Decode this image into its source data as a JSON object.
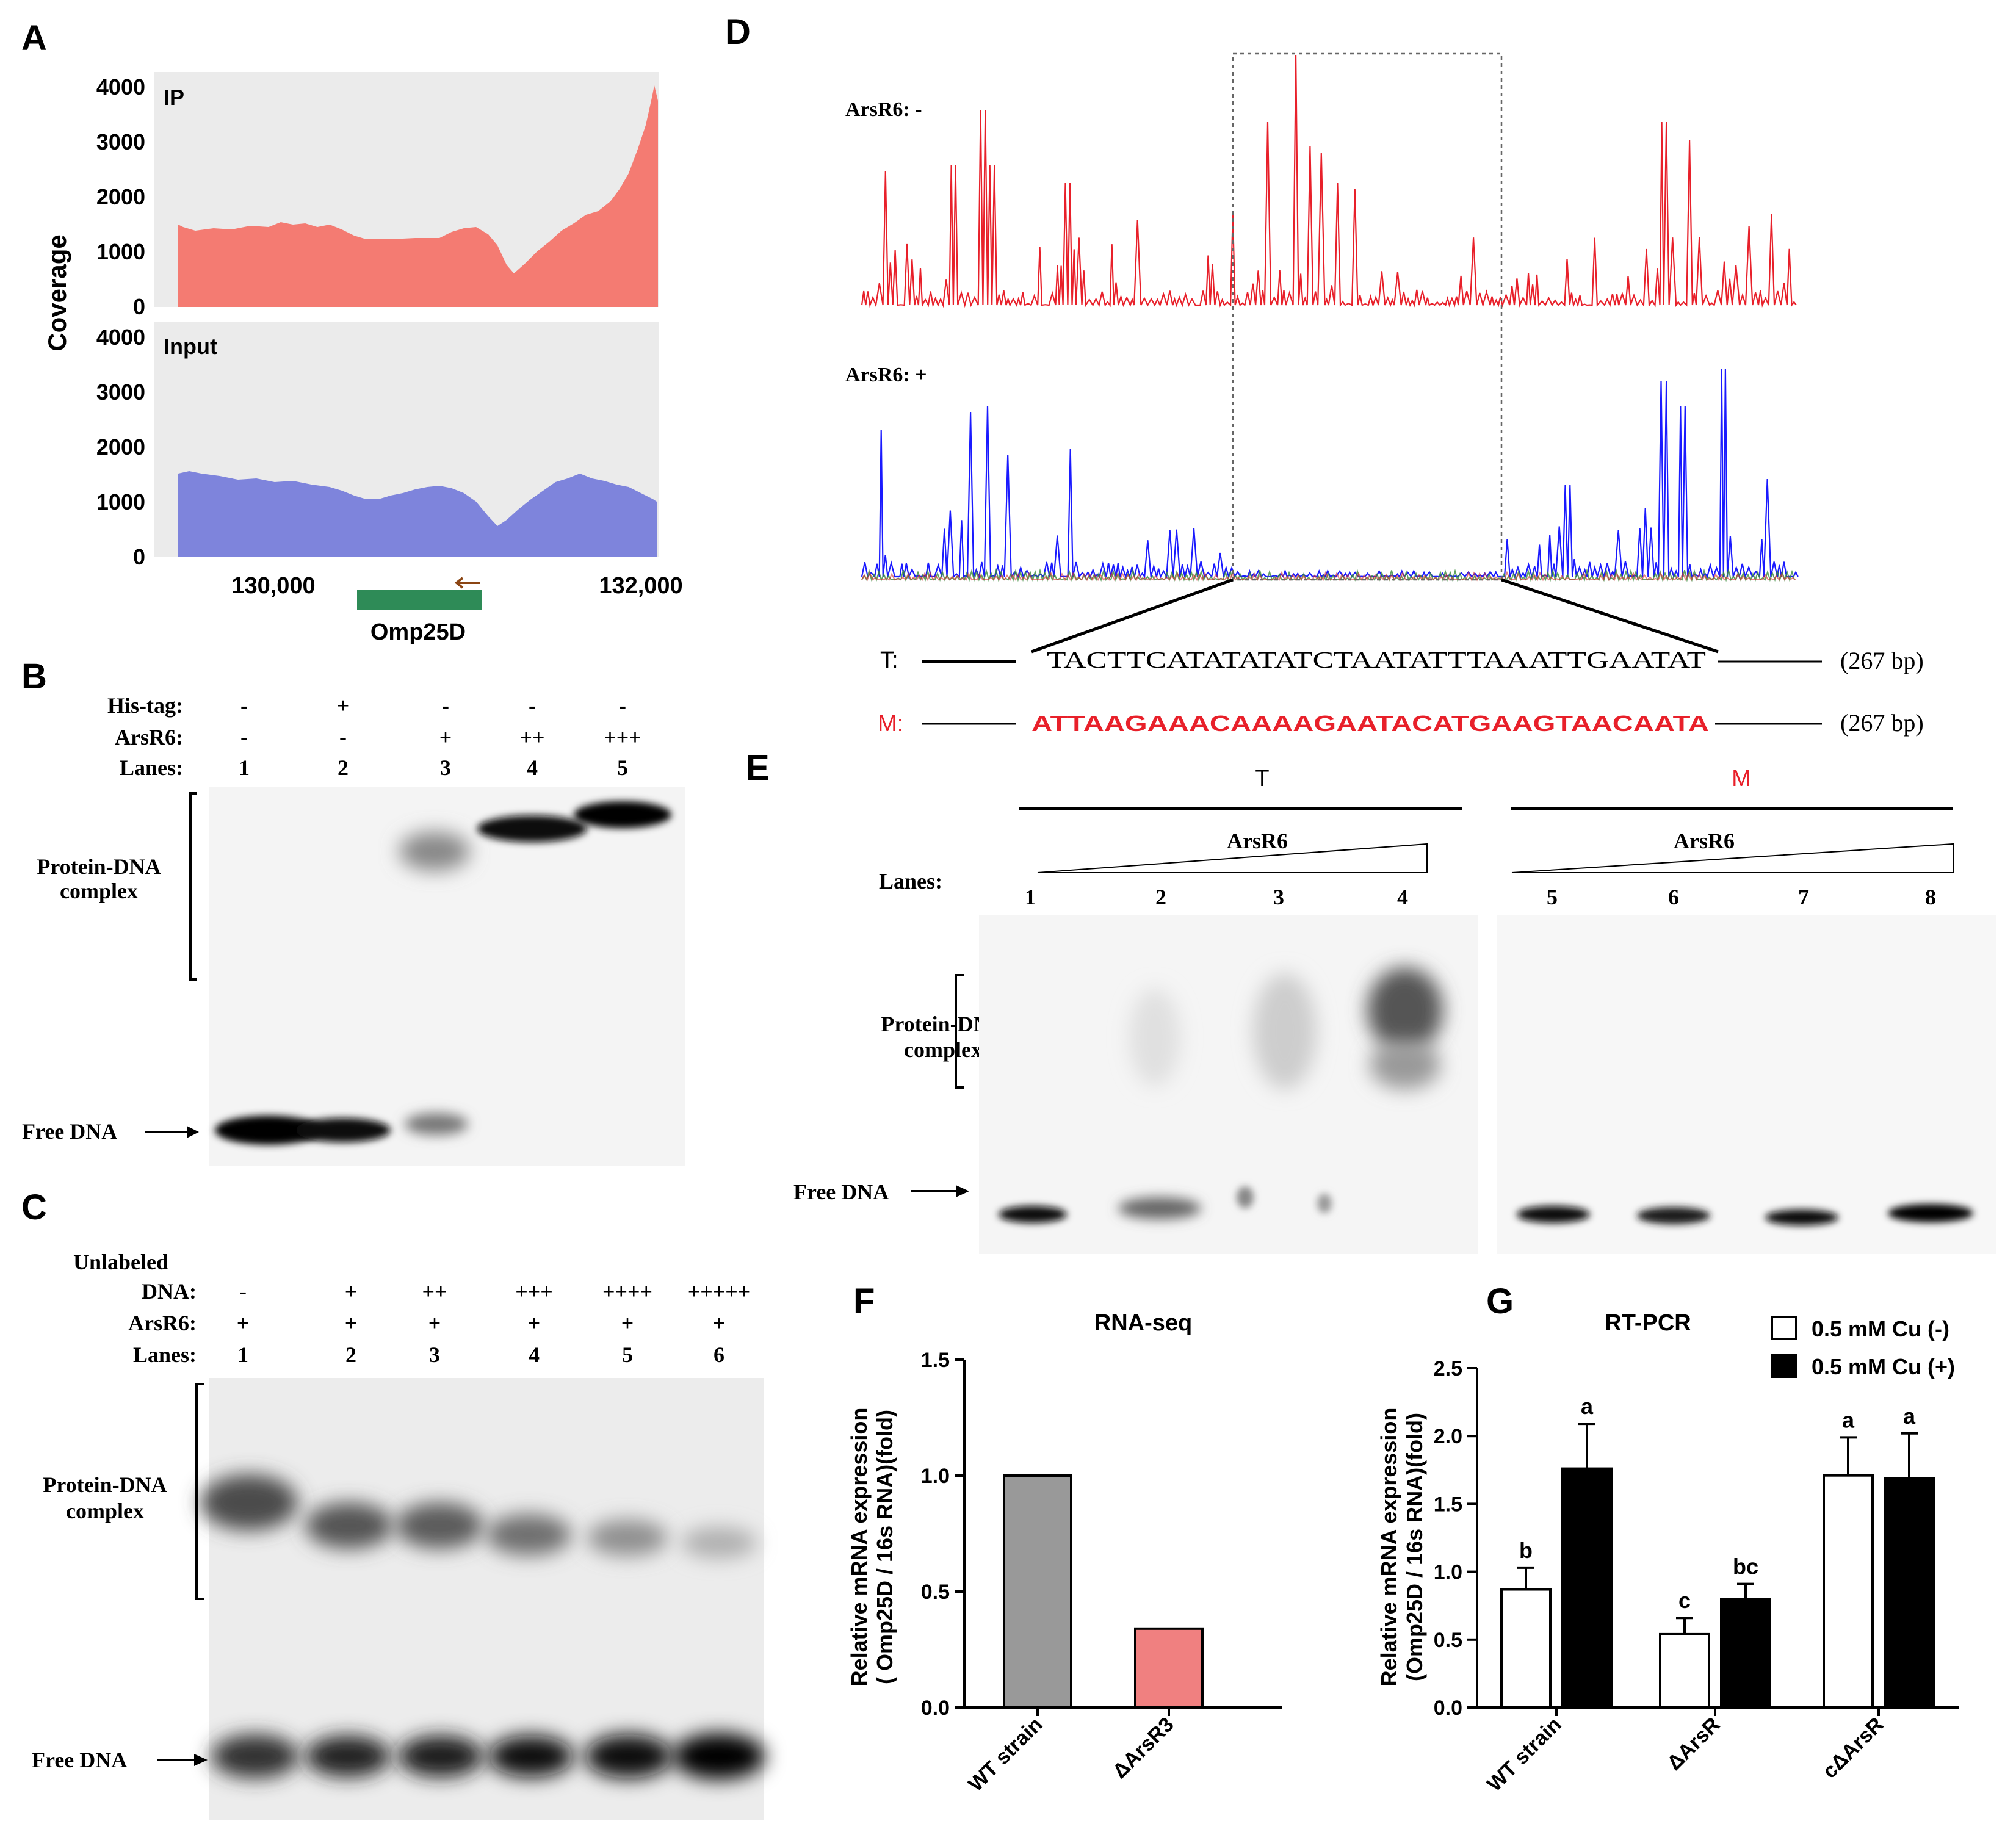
{
  "panel_letters": {
    "a": "A",
    "b": "B",
    "c": "C",
    "d": "D",
    "e": "E",
    "f": "F",
    "g": "G"
  },
  "panel_a": {
    "ylabel": "Coverage",
    "tracks": [
      "IP",
      "Input"
    ],
    "yticks": [
      "4000",
      "3000",
      "2000",
      "1000",
      "0"
    ],
    "xticks": [
      "130,000",
      "132,000"
    ],
    "gene": "Omp25D",
    "ip_color": "#f47b72",
    "input_color": "#7e84dc",
    "gene_color": "#2e8b57"
  },
  "panel_b": {
    "rows": [
      {
        "label": "His-tag:",
        "values": [
          "-",
          "+",
          "-",
          "-",
          "-"
        ]
      },
      {
        "label": "ArsR6:",
        "values": [
          "-",
          "-",
          "+",
          "++",
          "+++"
        ]
      },
      {
        "label": "Lanes:",
        "values": [
          "1",
          "2",
          "3",
          "4",
          "5"
        ]
      }
    ],
    "complex_label": [
      "Protein-DNA",
      "complex"
    ],
    "free_label": "Free DNA"
  },
  "panel_c": {
    "unlabeled_line1": "Unlabeled",
    "rows": [
      {
        "label": "DNA:",
        "values": [
          "-",
          "+",
          "++",
          "+++",
          "++++",
          "+++++"
        ]
      },
      {
        "label": "ArsR6:",
        "values": [
          "+",
          "+",
          "+",
          "+",
          "+",
          "+"
        ]
      },
      {
        "label": "Lanes:",
        "values": [
          "1",
          "2",
          "3",
          "4",
          "5",
          "6"
        ]
      }
    ],
    "complex_label": [
      "Protein-DNA",
      "complex"
    ],
    "free_label": "Free DNA"
  },
  "panel_d": {
    "trace1_label": "ArsR6: -",
    "trace2_label": "ArsR6: +",
    "trace1_color": "#e8202a",
    "trace2_color": "#1a1aff",
    "t_label": "T:",
    "t_seq": "TACTTCATATATATCTAATATTTAAATTGAATAT",
    "m_label": "M:",
    "m_seq": "ATTAAGAAACAAAAGAATACATGAAGTAACAATA",
    "length_t": "(267 bp)",
    "length_m": "(267 bp)",
    "m_color": "#e8202a"
  },
  "panel_e": {
    "t_header": "T",
    "m_header": "M",
    "arsr_label": "ArsR6",
    "lanes_label": "Lanes:",
    "lanes": [
      "1",
      "2",
      "3",
      "4",
      "5",
      "6",
      "7",
      "8"
    ],
    "complex_label": [
      "Protein-DNA",
      "complex"
    ],
    "free_label": "Free DNA"
  },
  "chart_data": [
    {
      "type": "bar",
      "title": "RNA-seq",
      "ylabel": "Relative mRNA expression ( Omp25D / 16s RNA)(fold)",
      "ylabel_lines": [
        "Relative mRNA expression",
        "( Omp25D / 16s RNA)(fold)"
      ],
      "categories": [
        "WT strain",
        "ΔArsR3"
      ],
      "values": [
        1.0,
        0.34
      ],
      "colors": [
        "#999999",
        "#f08080"
      ],
      "ylim": [
        0,
        1.5
      ],
      "yticks": [
        "0.0",
        "0.5",
        "1.0",
        "1.5"
      ]
    },
    {
      "type": "bar",
      "title": "RT-PCR",
      "ylabel": "Relative mRNA expression (Omp25D / 16s RNA)(fold)",
      "ylabel_lines": [
        "Relative mRNA expression",
        "(Omp25D / 16s RNA)(fold)"
      ],
      "categories": [
        "WT strain",
        "ΔArsR",
        "cΔArsR"
      ],
      "series": [
        {
          "name": "0.5 mM Cu (-)",
          "color": "#ffffff",
          "values": [
            0.87,
            0.54,
            1.71
          ],
          "errors": [
            0.16,
            0.12,
            0.28
          ],
          "labels": [
            "b",
            "c",
            "a"
          ]
        },
        {
          "name": "0.5 mM Cu (+)",
          "color": "#000000",
          "values": [
            1.76,
            0.8,
            1.69
          ],
          "errors": [
            0.33,
            0.11,
            0.33
          ],
          "labels": [
            "a",
            "bc",
            "a"
          ]
        }
      ],
      "ylim": [
        0,
        2.5
      ],
      "yticks": [
        "0.0",
        "0.5",
        "1.0",
        "1.5",
        "2.0",
        "2.5"
      ]
    }
  ]
}
